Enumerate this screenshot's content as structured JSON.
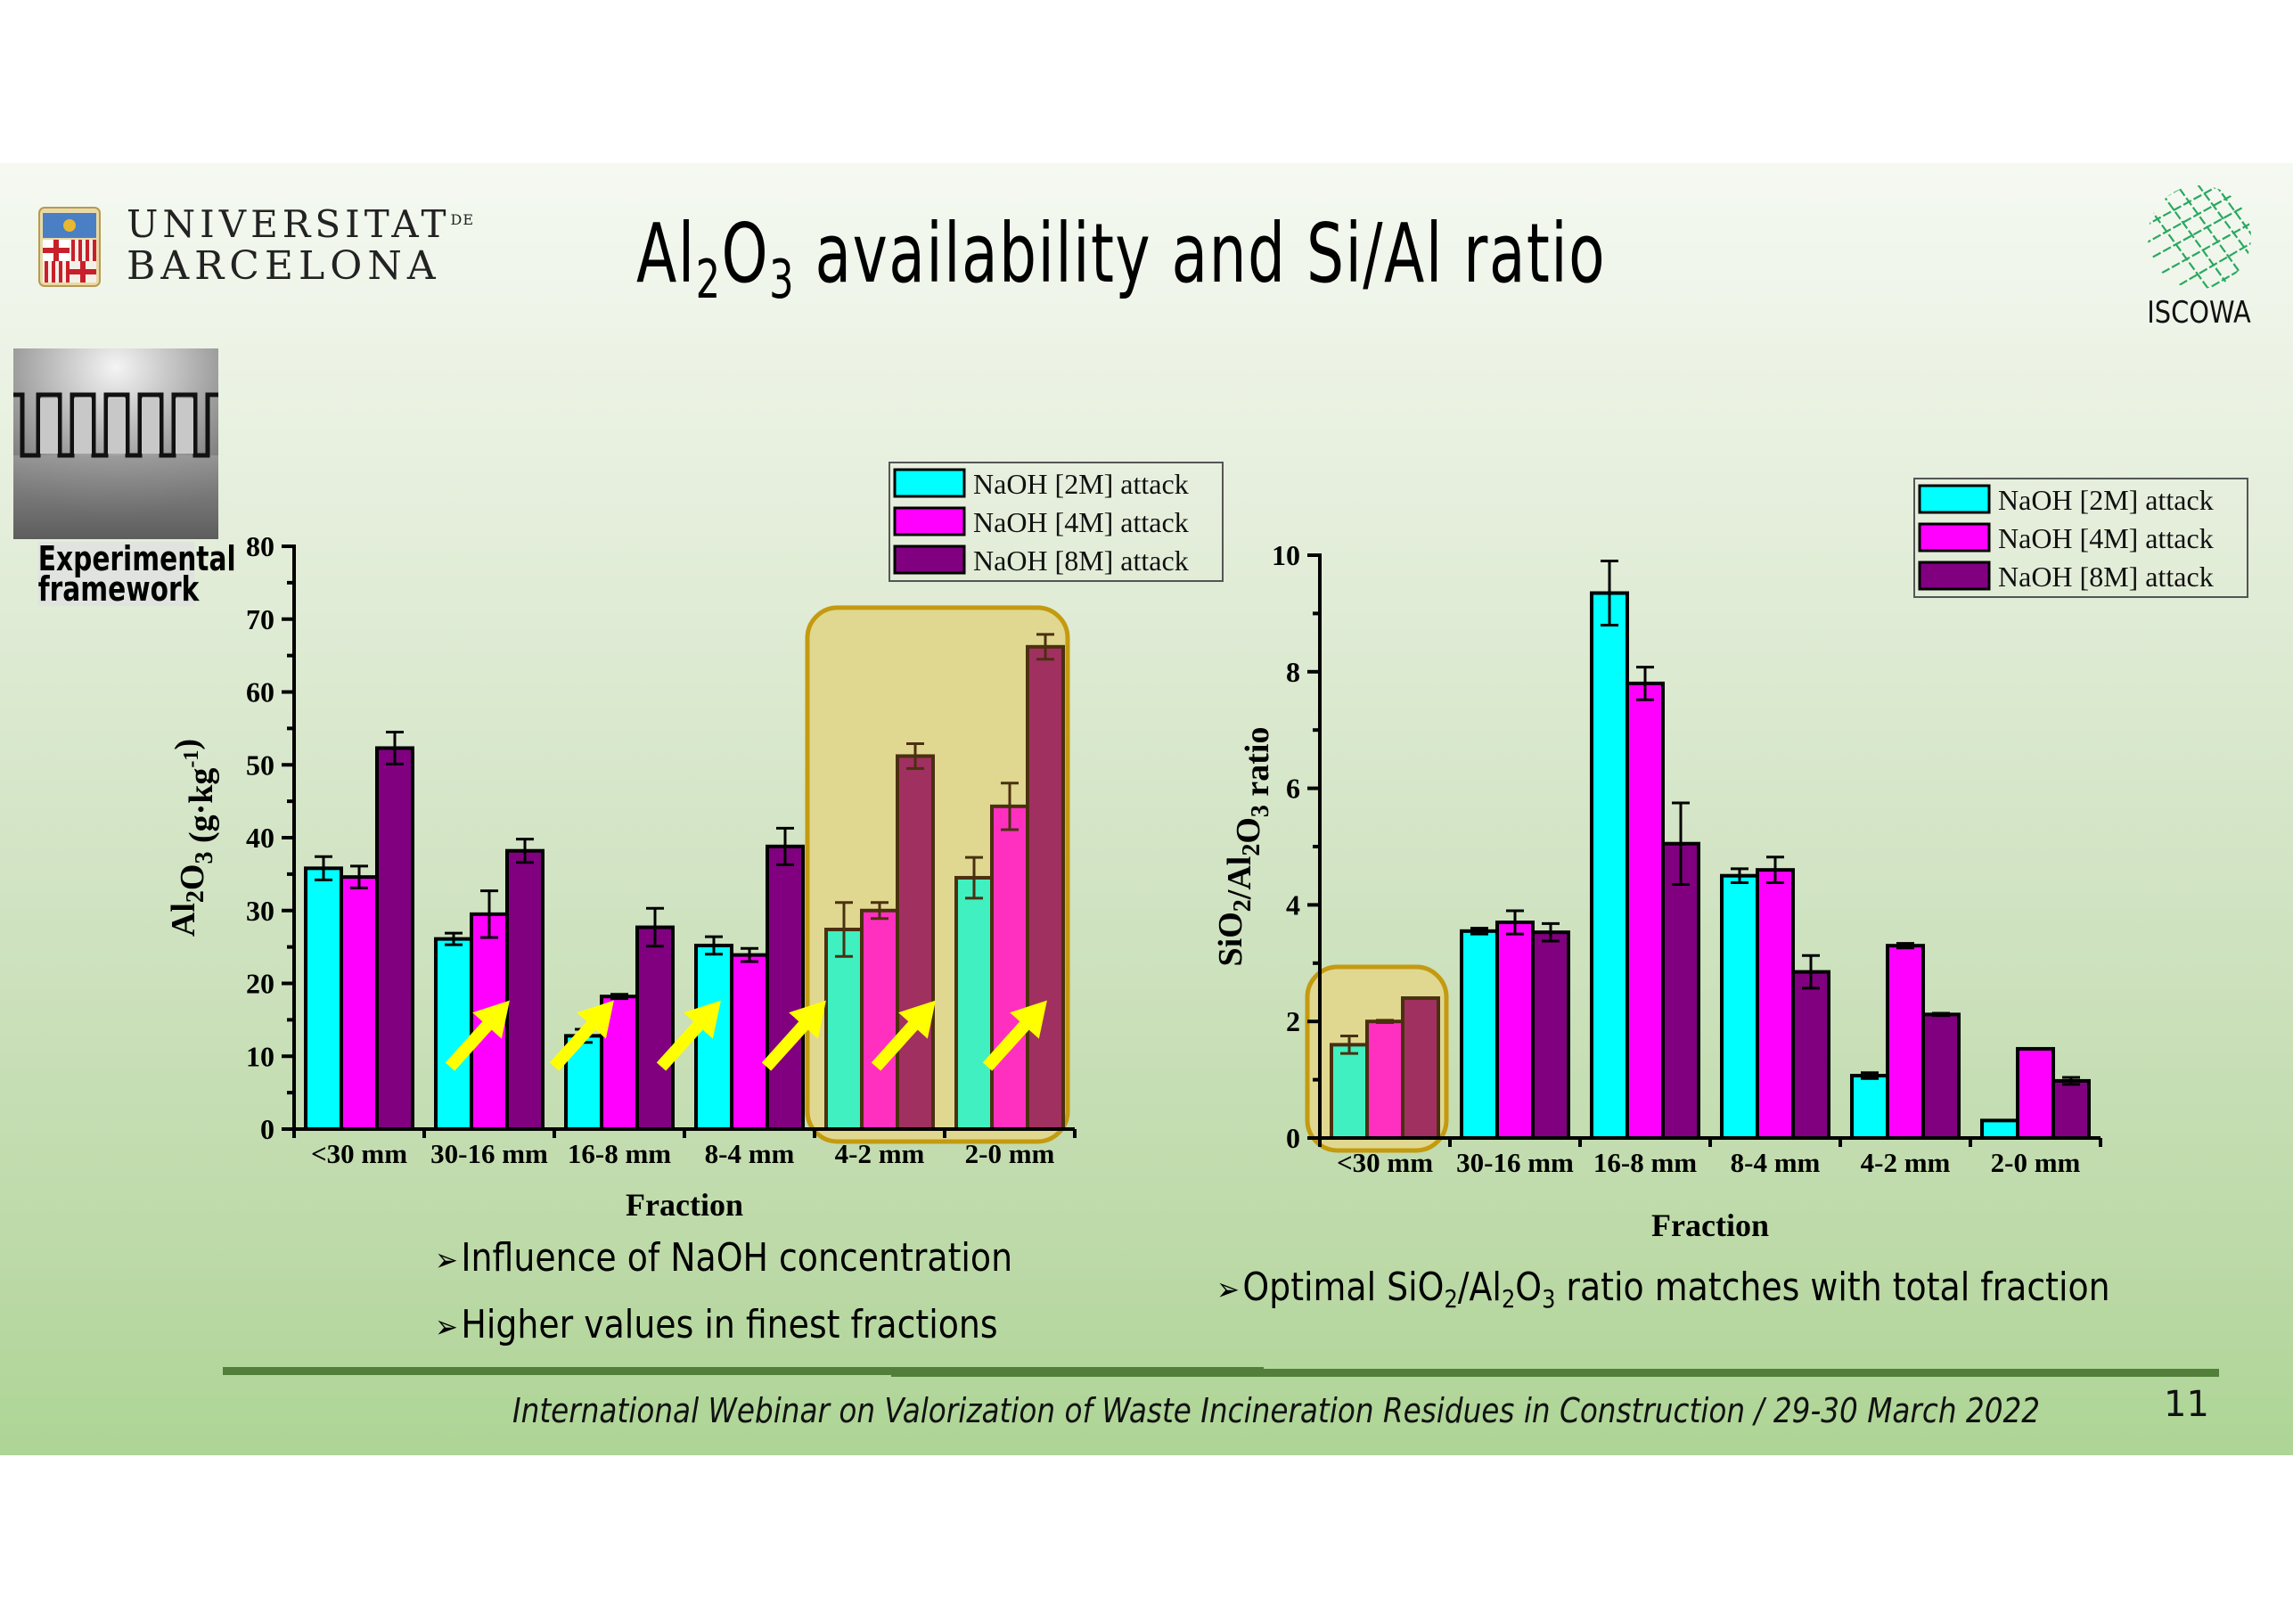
{
  "header": {
    "university_line1": "UNIVERSITAT",
    "university_de": "DE",
    "university_line2": "BARCELONA",
    "title_pre": "Al",
    "title_sub1": "2",
    "title_mid": "O",
    "title_sub2": "3",
    "title_post": " availability and Si/Al ratio",
    "partner_logo_label": "ISCOWA"
  },
  "sidebar": {
    "image_icon": "doors-corridor-image",
    "label_line1": "Experimental",
    "label_line2": "framework"
  },
  "colors": {
    "naoh_2m": "#00ffff",
    "naoh_4m": "#ff00ff",
    "naoh_8m": "#800080",
    "highlight_fill": "#e0d890",
    "highlight_border": "#c49a10",
    "trend_arrow": "#ffff00",
    "footer_bar": "#52803a"
  },
  "chart_data": [
    {
      "type": "bar",
      "title": "",
      "xlabel": "Fraction",
      "ylabel": "Al2O3 (g·kg-1)",
      "ylabel_parts": {
        "a": "Al",
        "s1": "2",
        "b": "O",
        "s2": "3",
        "c": " (g·kg",
        "sup": "-1",
        "d": ")"
      },
      "ylim": [
        0,
        80
      ],
      "yticks": [
        0,
        10,
        20,
        30,
        40,
        50,
        60,
        70,
        80
      ],
      "categories": [
        "<30 mm",
        "30-16 mm",
        "16-8 mm",
        "8-4 mm",
        "4-2 mm",
        "2-0 mm"
      ],
      "legend_position": "top-right",
      "series": [
        {
          "name": "NaOH [2M] attack",
          "values": [
            35.8,
            26.1,
            12.8,
            25.2,
            27.4,
            34.5
          ],
          "errors": [
            1.6,
            0.8,
            0.9,
            1.2,
            3.7,
            2.8
          ]
        },
        {
          "name": "NaOH [4M] attack",
          "values": [
            34.6,
            29.5,
            18.2,
            23.9,
            30.0,
            44.3
          ],
          "errors": [
            1.5,
            3.2,
            0.3,
            0.9,
            1.1,
            3.2
          ]
        },
        {
          "name": "NaOH [8M] attack",
          "values": [
            52.3,
            38.2,
            27.7,
            38.8,
            51.2,
            66.2
          ],
          "errors": [
            2.2,
            1.6,
            2.6,
            2.5,
            1.7,
            1.7
          ]
        }
      ],
      "highlighted_categories": [
        "4-2 mm",
        "2-0 mm"
      ],
      "trend_arrows_at": [
        "30-16 mm",
        "16-8 mm",
        "8-4 mm",
        "8-4 mm|4-2 mm",
        "4-2 mm",
        "2-0 mm"
      ]
    },
    {
      "type": "bar",
      "title": "",
      "xlabel": "Fraction",
      "ylabel": "SiO2/Al2O3 ratio",
      "ylabel_parts": {
        "a": "SiO",
        "s1": "2",
        "b": "/Al",
        "s2": "2",
        "c": "O",
        "s3": "3",
        "d": " ratio"
      },
      "ylim": [
        0,
        10
      ],
      "yticks": [
        0,
        2,
        4,
        6,
        8,
        10
      ],
      "categories": [
        "<30 mm",
        "30-16 mm",
        "16-8 mm",
        "8-4 mm",
        "4-2 mm",
        "2-0 mm"
      ],
      "legend_position": "top-right",
      "series": [
        {
          "name": "NaOH [2M] attack",
          "values": [
            1.6,
            3.55,
            9.35,
            4.5,
            1.07,
            0.3
          ],
          "errors": [
            0.15,
            0.05,
            0.55,
            0.12,
            0.05,
            0
          ]
        },
        {
          "name": "NaOH [4M] attack",
          "values": [
            2.0,
            3.7,
            7.8,
            4.6,
            3.3,
            1.53
          ],
          "errors": [
            0.02,
            0.2,
            0.28,
            0.22,
            0.04,
            0
          ]
        },
        {
          "name": "NaOH [8M] attack",
          "values": [
            2.4,
            3.53,
            5.05,
            2.85,
            2.12,
            0.98
          ],
          "errors": [
            0,
            0.15,
            0.7,
            0.28,
            0.02,
            0.06
          ]
        }
      ],
      "highlighted_categories": [
        "<30 mm"
      ]
    }
  ],
  "bullets": {
    "left": [
      "Influence of NaOH concentration",
      "Higher values in finest fractions"
    ],
    "right": {
      "a": "Optimal SiO",
      "s1": "2",
      "b": "/Al",
      "s2": "2",
      "c": "O",
      "s3": "3",
      "d": " ratio matches with total fraction"
    },
    "marker": "➢"
  },
  "footer": {
    "text": "International Webinar on Valorization of Waste Incineration Residues in Construction / 29-30 March 2022",
    "page_number": "11"
  }
}
